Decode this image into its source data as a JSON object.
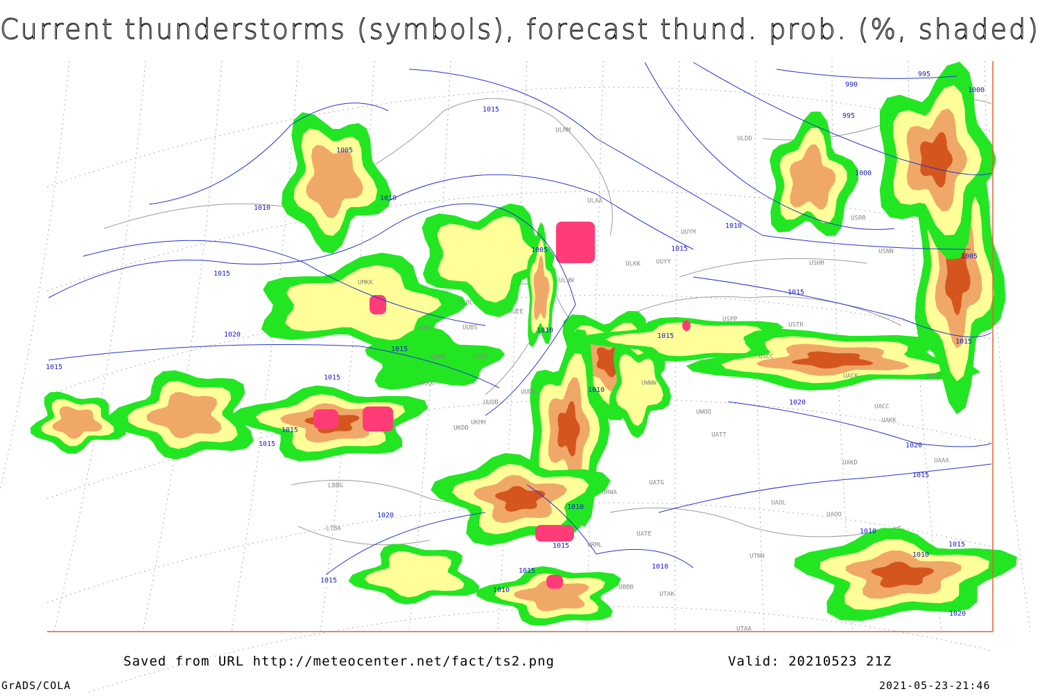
{
  "header": {
    "title": "Current thunderstorms (symbols), forecast thund. prob. (%, shaded)"
  },
  "footer": {
    "saved_from": "Saved from URL http://meteocenter.net/fact/ts2.png",
    "valid": "Valid: 20210523 21Z",
    "software": "GrADS/COLA",
    "timestamp": "2021-05-23-21:46"
  },
  "isobar_labels": [
    "1005",
    "1010",
    "1010",
    "1015",
    "1015",
    "1020",
    "1015",
    "1015",
    "1015",
    "1015",
    "1015",
    "1005",
    "1010",
    "1015",
    "1010",
    "1015",
    "1015",
    "1010",
    "1020",
    "1020",
    "1015",
    "1015",
    "1005",
    "995",
    "990",
    "995",
    "1000",
    "1000",
    "1010",
    "1015",
    "1020",
    "1015",
    "1010",
    "1015",
    "1010",
    "1010",
    "1010",
    "1015",
    "1020"
  ],
  "station_labels": [
    "ULMM",
    "ULAA",
    "UUYH",
    "UUYY",
    "ULKK",
    "ULWW",
    "UMKK",
    "ULOL",
    "UUEE",
    "UUBS",
    "UMMS",
    "UUBP",
    "UMMG",
    "UKKK",
    "UUOB",
    "UKHH",
    "UKDD",
    "UUDD",
    "UWWW",
    "UWOO",
    "UATT",
    "UAKD",
    "UATG",
    "URWA",
    "UATE",
    "URML",
    "UBBB",
    "UTAK",
    "UTAA",
    "UTNN",
    "USPP",
    "USTR",
    "USCC",
    "UACK",
    "UASP",
    "UACC",
    "UAKK",
    "UAAA",
    "UAOL",
    "UAOO",
    "ULDD",
    "USRR",
    "USNN",
    "USHH",
    "LBBG",
    "LTBA"
  ]
}
